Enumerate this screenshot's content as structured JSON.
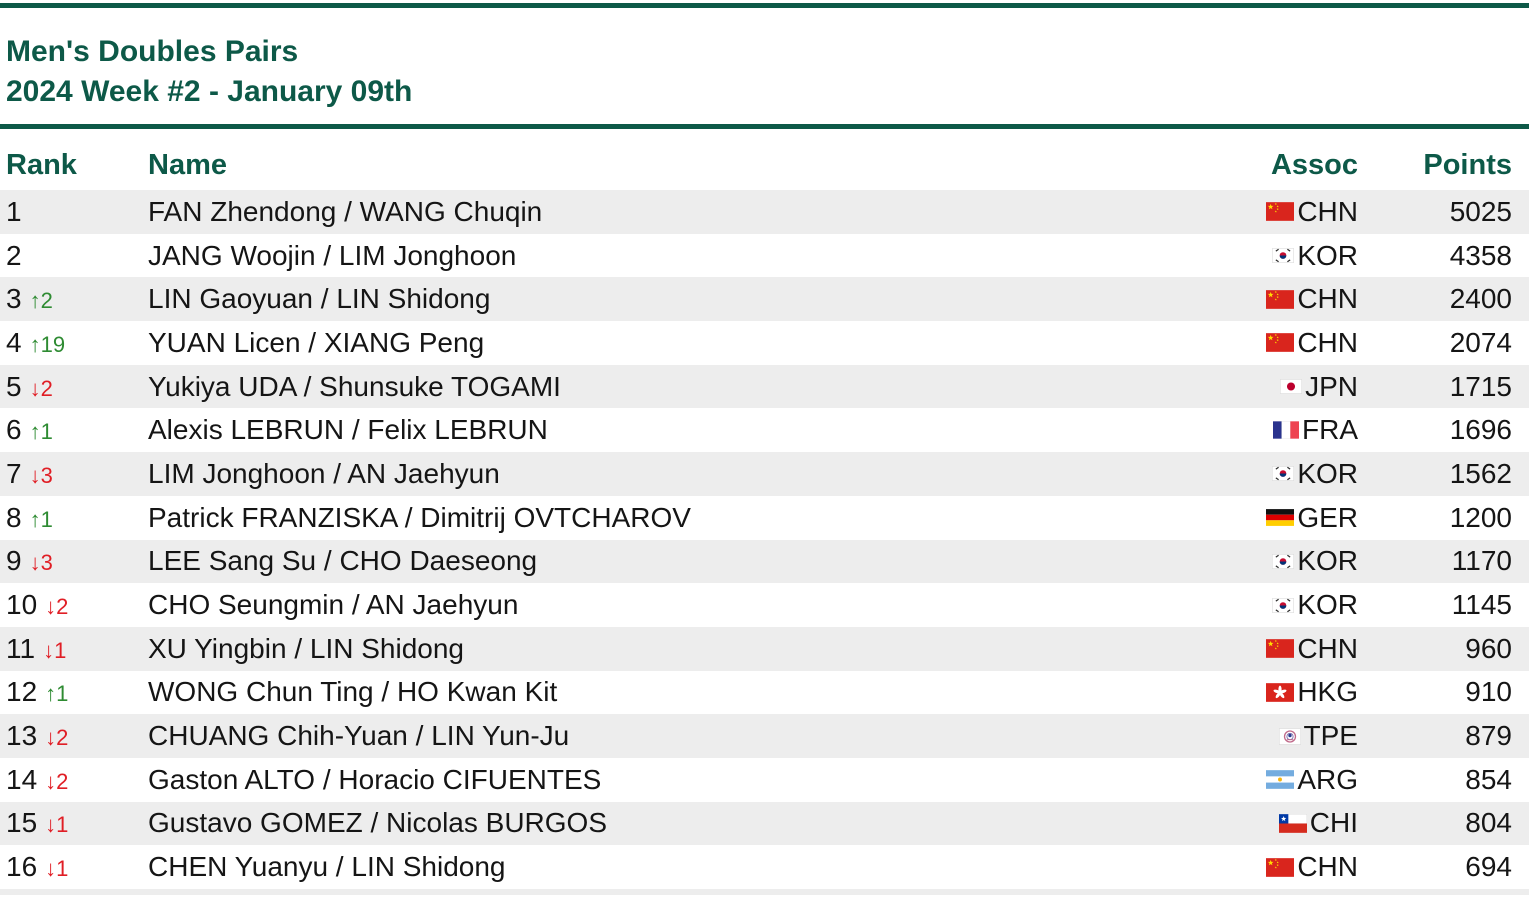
{
  "header": {
    "title": "Men's Doubles Pairs",
    "subtitle": "2024 Week #2 - January 09th"
  },
  "columns": {
    "rank": "Rank",
    "name": "Name",
    "assoc": "Assoc",
    "points": "Points"
  },
  "rows": [
    {
      "rank": "1",
      "change": "",
      "change_dir": "none",
      "name": "FAN Zhendong / WANG Chuqin",
      "flag": "CHN",
      "assoc": "CHN",
      "points": "5025"
    },
    {
      "rank": "2",
      "change": "",
      "change_dir": "none",
      "name": "JANG Woojin / LIM Jonghoon",
      "flag": "KOR",
      "assoc": "KOR",
      "points": "4358"
    },
    {
      "rank": "3",
      "change": "↑2",
      "change_dir": "up",
      "name": "LIN Gaoyuan / LIN Shidong",
      "flag": "CHN",
      "assoc": "CHN",
      "points": "2400"
    },
    {
      "rank": "4",
      "change": "↑19",
      "change_dir": "up",
      "name": "YUAN Licen / XIANG Peng",
      "flag": "CHN",
      "assoc": "CHN",
      "points": "2074"
    },
    {
      "rank": "5",
      "change": "↓2",
      "change_dir": "down",
      "name": "Yukiya UDA / Shunsuke TOGAMI",
      "flag": "JPN",
      "assoc": "JPN",
      "points": "1715"
    },
    {
      "rank": "6",
      "change": "↑1",
      "change_dir": "up",
      "name": "Alexis LEBRUN / Felix LEBRUN",
      "flag": "FRA",
      "assoc": "FRA",
      "points": "1696"
    },
    {
      "rank": "7",
      "change": "↓3",
      "change_dir": "down",
      "name": "LIM Jonghoon / AN Jaehyun",
      "flag": "KOR",
      "assoc": "KOR",
      "points": "1562"
    },
    {
      "rank": "8",
      "change": "↑1",
      "change_dir": "up",
      "name": "Patrick FRANZISKA / Dimitrij OVTCHAROV",
      "flag": "GER",
      "assoc": "GER",
      "points": "1200"
    },
    {
      "rank": "9",
      "change": "↓3",
      "change_dir": "down",
      "name": "LEE Sang Su / CHO Daeseong",
      "flag": "KOR",
      "assoc": "KOR",
      "points": "1170"
    },
    {
      "rank": "10",
      "change": "↓2",
      "change_dir": "down",
      "name": "CHO Seungmin / AN Jaehyun",
      "flag": "KOR",
      "assoc": "KOR",
      "points": "1145"
    },
    {
      "rank": "11",
      "change": "↓1",
      "change_dir": "down",
      "name": "XU Yingbin / LIN Shidong",
      "flag": "CHN",
      "assoc": "CHN",
      "points": "960"
    },
    {
      "rank": "12",
      "change": "↑1",
      "change_dir": "up",
      "name": "WONG Chun Ting / HO Kwan Kit",
      "flag": "HKG",
      "assoc": "HKG",
      "points": "910"
    },
    {
      "rank": "13",
      "change": "↓2",
      "change_dir": "down",
      "name": "CHUANG Chih-Yuan / LIN Yun-Ju",
      "flag": "TPE",
      "assoc": "TPE",
      "points": "879"
    },
    {
      "rank": "14",
      "change": "↓2",
      "change_dir": "down",
      "name": "Gaston ALTO / Horacio CIFUENTES",
      "flag": "ARG",
      "assoc": "ARG",
      "points": "854"
    },
    {
      "rank": "15",
      "change": "↓1",
      "change_dir": "down",
      "name": "Gustavo GOMEZ / Nicolas BURGOS",
      "flag": "CHI",
      "assoc": "CHI",
      "points": "804"
    },
    {
      "rank": "16",
      "change": "↓1",
      "change_dir": "down",
      "name": "CHEN Yuanyu / LIN Shidong",
      "flag": "CHN",
      "assoc": "CHN",
      "points": "694"
    }
  ],
  "colors": {
    "heading_green": "#0d5948",
    "stripe_gray": "#ededed",
    "up_green": "#2e8b32",
    "down_red": "#e01e25"
  }
}
